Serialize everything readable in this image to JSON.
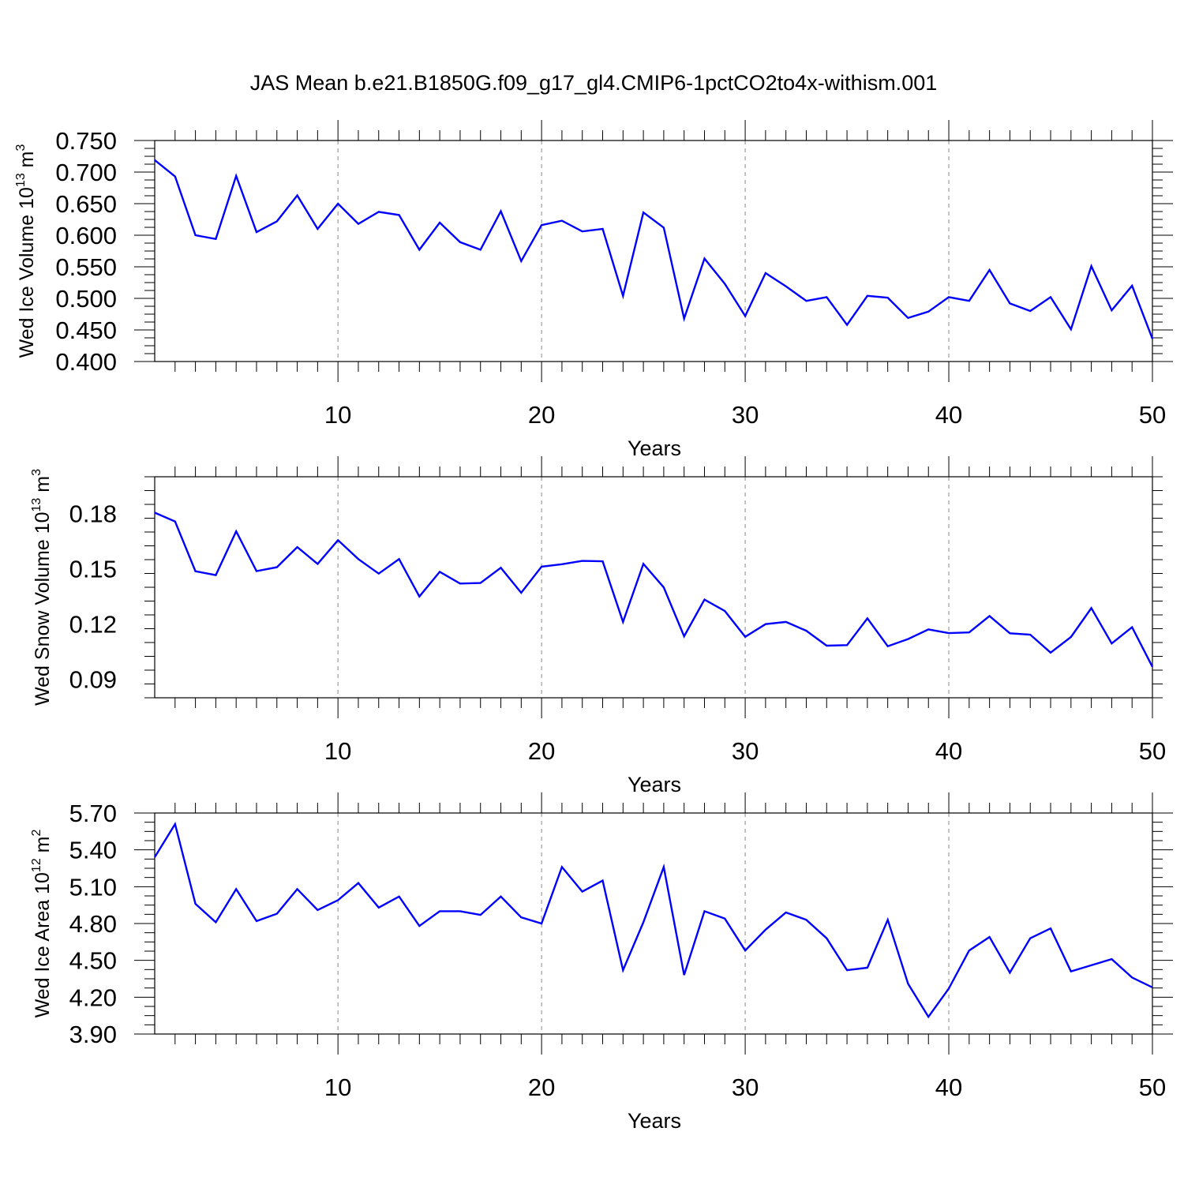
{
  "title": "JAS Mean b.e21.B1850G.f09_g17_gl4.CMIP6-1pctCO2to4x-withism.001",
  "colors": {
    "line": "#0000ff",
    "axis": "#000000",
    "grid": "#888888"
  },
  "chart_data": [
    {
      "type": "line",
      "xlabel": "Years",
      "ylabel_main": "Wed Ice Volume 10",
      "ylabel_exp": "13",
      "ylabel_unit": " m",
      "ylabel_unit_exp": "3",
      "xlim": [
        1,
        50
      ],
      "ylim": [
        0.4,
        0.75
      ],
      "x_ticks": [
        10,
        20,
        30,
        40,
        50
      ],
      "y_ticks": [
        0.4,
        0.45,
        0.5,
        0.55,
        0.6,
        0.65,
        0.7,
        0.75
      ],
      "y_tick_labels": [
        "0.400",
        "0.450",
        "0.500",
        "0.550",
        "0.600",
        "0.650",
        "0.700",
        "0.750"
      ],
      "grid": "vertical dashed at x ticks",
      "x": [
        1,
        2,
        3,
        4,
        5,
        6,
        7,
        8,
        9,
        10,
        11,
        12,
        13,
        14,
        15,
        16,
        17,
        18,
        19,
        20,
        21,
        22,
        23,
        24,
        25,
        26,
        27,
        28,
        29,
        30,
        31,
        32,
        33,
        34,
        35,
        36,
        37,
        38,
        39,
        40,
        41,
        42,
        43,
        44,
        45,
        46,
        47,
        48,
        49,
        50
      ],
      "values": [
        0.719,
        0.693,
        0.6,
        0.594,
        0.694,
        0.605,
        0.622,
        0.663,
        0.61,
        0.65,
        0.618,
        0.637,
        0.632,
        0.577,
        0.62,
        0.589,
        0.577,
        0.638,
        0.559,
        0.616,
        0.623,
        0.606,
        0.61,
        0.504,
        0.636,
        0.612,
        0.468,
        0.563,
        0.523,
        0.472,
        0.54,
        0.519,
        0.496,
        0.502,
        0.458,
        0.504,
        0.501,
        0.469,
        0.479,
        0.502,
        0.496,
        0.545,
        0.492,
        0.48,
        0.502,
        0.451,
        0.551,
        0.481,
        0.52,
        0.436
      ]
    },
    {
      "type": "line",
      "xlabel": "Years",
      "ylabel_main": "Wed Snow Volume 10",
      "ylabel_exp": "13",
      "ylabel_unit": " m",
      "ylabel_unit_exp": "3",
      "xlim": [
        1,
        50
      ],
      "ylim": [
        0.08,
        0.2
      ],
      "x_ticks": [
        10,
        20,
        30,
        40,
        50
      ],
      "y_ticks": [
        0.09,
        0.12,
        0.15,
        0.18
      ],
      "y_tick_labels": [
        "0.09",
        "0.12",
        "0.15",
        "0.18"
      ],
      "grid": "vertical dashed at x ticks",
      "x": [
        1,
        2,
        3,
        4,
        5,
        6,
        7,
        8,
        9,
        10,
        11,
        12,
        13,
        14,
        15,
        16,
        17,
        18,
        19,
        20,
        21,
        22,
        23,
        24,
        25,
        26,
        27,
        28,
        29,
        30,
        31,
        32,
        33,
        34,
        35,
        36,
        37,
        38,
        39,
        40,
        41,
        42,
        43,
        44,
        45,
        46,
        47,
        48,
        49,
        50
      ],
      "values": [
        0.1805,
        0.1757,
        0.1487,
        0.1466,
        0.1704,
        0.1488,
        0.1509,
        0.1618,
        0.1527,
        0.1656,
        0.1553,
        0.1474,
        0.1553,
        0.135,
        0.1484,
        0.142,
        0.1423,
        0.1506,
        0.137,
        0.1512,
        0.1525,
        0.1543,
        0.1541,
        0.1212,
        0.1527,
        0.1399,
        0.1134,
        0.1333,
        0.1271,
        0.1131,
        0.12,
        0.1212,
        0.1164,
        0.1083,
        0.1086,
        0.1231,
        0.108,
        0.1119,
        0.1171,
        0.1151,
        0.1155,
        0.1244,
        0.115,
        0.1143,
        0.1045,
        0.113,
        0.1287,
        0.1095,
        0.1183,
        0.0968
      ]
    },
    {
      "type": "line",
      "xlabel": "Years",
      "ylabel_main": "Wed Ice Area 10",
      "ylabel_exp": "12",
      "ylabel_unit": " m",
      "ylabel_unit_exp": "2",
      "xlim": [
        1,
        50
      ],
      "ylim": [
        3.9,
        5.7
      ],
      "x_ticks": [
        10,
        20,
        30,
        40,
        50
      ],
      "y_ticks": [
        3.9,
        4.2,
        4.5,
        4.8,
        5.1,
        5.4,
        5.7
      ],
      "y_tick_labels": [
        "3.90",
        "4.20",
        "4.50",
        "4.80",
        "5.10",
        "5.40",
        "5.70"
      ],
      "grid": "vertical dashed at x ticks",
      "x": [
        1,
        2,
        3,
        4,
        5,
        6,
        7,
        8,
        9,
        10,
        11,
        12,
        13,
        14,
        15,
        16,
        17,
        18,
        19,
        20,
        21,
        22,
        23,
        24,
        25,
        26,
        27,
        28,
        29,
        30,
        31,
        32,
        33,
        34,
        35,
        36,
        37,
        38,
        39,
        40,
        41,
        42,
        43,
        44,
        45,
        46,
        47,
        48,
        49,
        50
      ],
      "values": [
        5.34,
        5.61,
        4.96,
        4.81,
        5.08,
        4.82,
        4.88,
        5.08,
        4.91,
        4.99,
        5.13,
        4.93,
        5.02,
        4.78,
        4.9,
        4.9,
        4.87,
        5.02,
        4.85,
        4.8,
        5.26,
        5.06,
        5.15,
        4.42,
        4.81,
        5.26,
        4.38,
        4.9,
        4.84,
        4.58,
        4.75,
        4.89,
        4.83,
        4.68,
        4.42,
        4.44,
        4.83,
        4.31,
        4.04,
        4.27,
        4.58,
        4.69,
        4.4,
        4.68,
        4.76,
        4.41,
        4.46,
        4.51,
        4.36,
        4.28
      ]
    }
  ]
}
